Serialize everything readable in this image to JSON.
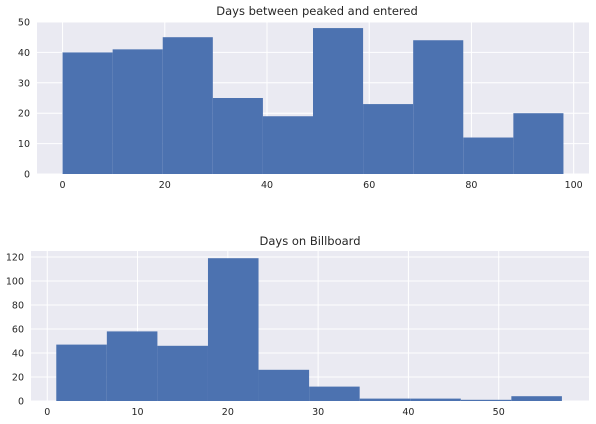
{
  "chart_data": [
    {
      "type": "bar",
      "title": "Days between peaked and entered",
      "xlabel": "",
      "ylabel": "",
      "xlim": [
        -5,
        103
      ],
      "ylim": [
        0,
        50
      ],
      "x_ticks": [
        0,
        20,
        40,
        60,
        80,
        100
      ],
      "y_ticks": [
        0,
        10,
        20,
        30,
        40,
        50
      ],
      "grid": true,
      "color": "#4c72b0",
      "bins": [
        {
          "x0": 0.0,
          "x1": 9.8,
          "value": 40
        },
        {
          "x0": 9.8,
          "x1": 19.6,
          "value": 41
        },
        {
          "x0": 19.6,
          "x1": 29.4,
          "value": 45
        },
        {
          "x0": 29.4,
          "x1": 39.2,
          "value": 25
        },
        {
          "x0": 39.2,
          "x1": 49.0,
          "value": 19
        },
        {
          "x0": 49.0,
          "x1": 58.8,
          "value": 48
        },
        {
          "x0": 58.8,
          "x1": 68.6,
          "value": 23
        },
        {
          "x0": 68.6,
          "x1": 78.4,
          "value": 44
        },
        {
          "x0": 78.4,
          "x1": 88.2,
          "value": 12
        },
        {
          "x0": 88.2,
          "x1": 98.0,
          "value": 20
        }
      ]
    },
    {
      "type": "bar",
      "title": "Days on Billboard",
      "xlabel": "",
      "ylabel": "",
      "xlim": [
        -1.8,
        60
      ],
      "ylim": [
        0,
        125
      ],
      "x_ticks": [
        0,
        10,
        20,
        30,
        40,
        50
      ],
      "y_ticks": [
        0,
        20,
        40,
        60,
        80,
        100,
        120
      ],
      "grid": true,
      "color": "#4c72b0",
      "bins": [
        {
          "x0": 1.0,
          "x1": 6.6,
          "value": 47
        },
        {
          "x0": 6.6,
          "x1": 12.2,
          "value": 58
        },
        {
          "x0": 12.2,
          "x1": 17.8,
          "value": 46
        },
        {
          "x0": 17.8,
          "x1": 23.4,
          "value": 119
        },
        {
          "x0": 23.4,
          "x1": 29.0,
          "value": 26
        },
        {
          "x0": 29.0,
          "x1": 34.6,
          "value": 12
        },
        {
          "x0": 34.6,
          "x1": 40.2,
          "value": 2
        },
        {
          "x0": 40.2,
          "x1": 45.8,
          "value": 2
        },
        {
          "x0": 45.8,
          "x1": 51.4,
          "value": 1
        },
        {
          "x0": 51.4,
          "x1": 57.0,
          "value": 4
        }
      ]
    }
  ]
}
